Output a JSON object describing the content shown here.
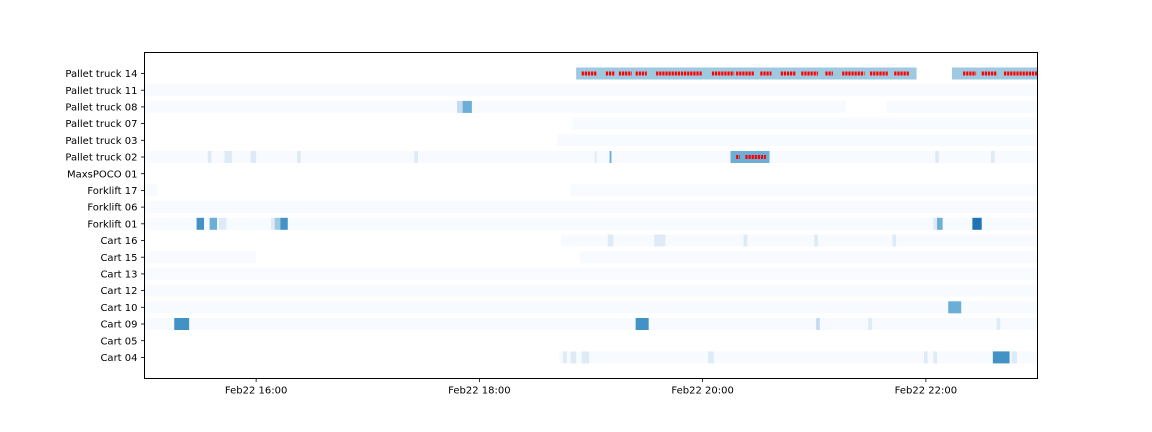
{
  "chart_data": {
    "type": "heatmap",
    "title": "",
    "xlabel": "",
    "ylabel": "",
    "colors": {
      "scale": [
        "#f7fbff",
        "#deebf7",
        "#c6dbef",
        "#9ecae1",
        "#6baed6",
        "#4292c6",
        "#2171b5"
      ],
      "marker": "#ff0000"
    },
    "xlim": [
      "2024-02-22T15:00",
      "2024-02-22T23:00"
    ],
    "x_ticks": [
      {
        "t": "2024-02-22T16:00",
        "label": "Feb22 16:00"
      },
      {
        "t": "2024-02-22T18:00",
        "label": "Feb22 18:00"
      },
      {
        "t": "2024-02-22T20:00",
        "label": "Feb22 20:00"
      },
      {
        "t": "2024-02-22T22:00",
        "label": "Feb22 22:00"
      }
    ],
    "rows": [
      {
        "name": "Pallet truck 14",
        "segments": [
          {
            "start": "18:52",
            "end": "21:55",
            "level": 3
          },
          {
            "start": "22:14",
            "end": "23:00",
            "level": 3
          }
        ],
        "markers": [
          [
            "18:55",
            "19:03"
          ],
          [
            "19:08",
            "19:13"
          ],
          [
            "19:15",
            "19:22"
          ],
          [
            "19:24",
            "19:30"
          ],
          [
            "19:35",
            "20:00"
          ],
          [
            "20:05",
            "20:17"
          ],
          [
            "20:18",
            "20:28"
          ],
          [
            "20:31",
            "20:37"
          ],
          [
            "20:42",
            "20:50"
          ],
          [
            "20:53",
            "21:02"
          ],
          [
            "21:06",
            "21:10"
          ],
          [
            "21:15",
            "21:27"
          ],
          [
            "21:30",
            "21:40"
          ],
          [
            "21:43",
            "21:51"
          ],
          [
            "22:20",
            "22:27"
          ],
          [
            "22:30",
            "22:38"
          ],
          [
            "22:42",
            "23:00"
          ]
        ]
      },
      {
        "name": "Pallet truck 11",
        "segments": [
          {
            "start": "15:00",
            "end": "23:00",
            "level": 0
          }
        ]
      },
      {
        "name": "Pallet truck 08",
        "segments": [
          {
            "start": "15:00",
            "end": "17:48",
            "level": 0
          },
          {
            "start": "17:48",
            "end": "17:51",
            "level": 2
          },
          {
            "start": "17:51",
            "end": "17:56",
            "level": 4
          },
          {
            "start": "17:56",
            "end": "21:17",
            "level": 0
          },
          {
            "start": "21:39",
            "end": "23:00",
            "level": 0
          }
        ]
      },
      {
        "name": "Pallet truck 07",
        "segments": [
          {
            "start": "18:50",
            "end": "23:00",
            "level": 0
          }
        ]
      },
      {
        "name": "Pallet truck 03",
        "segments": [
          {
            "start": "18:42",
            "end": "23:00",
            "level": 0
          }
        ]
      },
      {
        "name": "Pallet truck 02",
        "segments": [
          {
            "start": "15:00",
            "end": "20:15",
            "level": 0
          },
          {
            "start": "15:34",
            "end": "15:36",
            "level": 1
          },
          {
            "start": "15:43",
            "end": "15:47",
            "level": 1
          },
          {
            "start": "15:57",
            "end": "16:00",
            "level": 1
          },
          {
            "start": "16:22",
            "end": "16:24",
            "level": 1
          },
          {
            "start": "17:25",
            "end": "17:27",
            "level": 1
          },
          {
            "start": "19:02",
            "end": "19:03",
            "level": 1
          },
          {
            "start": "19:10",
            "end": "19:11",
            "level": 4
          },
          {
            "start": "20:15",
            "end": "20:36",
            "level": 4
          },
          {
            "start": "20:36",
            "end": "23:00",
            "level": 0
          },
          {
            "start": "22:05",
            "end": "22:07",
            "level": 1
          },
          {
            "start": "22:35",
            "end": "22:37",
            "level": 1
          }
        ],
        "markers": [
          [
            "20:18",
            "20:20"
          ],
          [
            "20:23",
            "20:34"
          ]
        ]
      },
      {
        "name": "MaxsPOCO 01",
        "segments": []
      },
      {
        "name": "Forklift 17",
        "segments": [
          {
            "start": "15:00",
            "end": "15:07",
            "level": 0
          },
          {
            "start": "18:49",
            "end": "23:00",
            "level": 0
          }
        ]
      },
      {
        "name": "Forklift 06",
        "segments": [
          {
            "start": "15:00",
            "end": "23:00",
            "level": 0
          }
        ]
      },
      {
        "name": "Forklift 01",
        "segments": [
          {
            "start": "15:00",
            "end": "23:00",
            "level": 0
          },
          {
            "start": "15:28",
            "end": "15:32",
            "level": 5
          },
          {
            "start": "15:35",
            "end": "15:39",
            "level": 4
          },
          {
            "start": "15:40",
            "end": "15:44",
            "level": 1
          },
          {
            "start": "16:08",
            "end": "16:10",
            "level": 1
          },
          {
            "start": "16:10",
            "end": "16:13",
            "level": 3
          },
          {
            "start": "16:13",
            "end": "16:17",
            "level": 5
          },
          {
            "start": "22:04",
            "end": "22:06",
            "level": 1
          },
          {
            "start": "22:06",
            "end": "22:09",
            "level": 4
          },
          {
            "start": "22:25",
            "end": "22:30",
            "level": 6
          }
        ]
      },
      {
        "name": "Cart 16",
        "segments": [
          {
            "start": "18:44",
            "end": "23:00",
            "level": 0
          },
          {
            "start": "19:09",
            "end": "19:12",
            "level": 1
          },
          {
            "start": "19:34",
            "end": "19:40",
            "level": 1
          },
          {
            "start": "20:22",
            "end": "20:24",
            "level": 1
          },
          {
            "start": "21:00",
            "end": "21:02",
            "level": 1
          },
          {
            "start": "21:42",
            "end": "21:44",
            "level": 1
          }
        ]
      },
      {
        "name": "Cart 15",
        "segments": [
          {
            "start": "15:00",
            "end": "16:00",
            "level": 0
          },
          {
            "start": "18:54",
            "end": "23:00",
            "level": 0
          }
        ]
      },
      {
        "name": "Cart 13",
        "segments": [
          {
            "start": "15:00",
            "end": "23:00",
            "level": 0
          }
        ]
      },
      {
        "name": "Cart 12",
        "segments": [
          {
            "start": "15:00",
            "end": "23:00",
            "level": 0
          }
        ]
      },
      {
        "name": "Cart 10",
        "segments": [
          {
            "start": "15:00",
            "end": "23:00",
            "level": 0
          },
          {
            "start": "22:12",
            "end": "22:19",
            "level": 4
          }
        ]
      },
      {
        "name": "Cart 09",
        "segments": [
          {
            "start": "15:00",
            "end": "23:00",
            "level": 0
          },
          {
            "start": "15:16",
            "end": "15:24",
            "level": 5
          },
          {
            "start": "19:24",
            "end": "19:31",
            "level": 5
          },
          {
            "start": "21:01",
            "end": "21:03",
            "level": 2
          },
          {
            "start": "21:29",
            "end": "21:31",
            "level": 1
          },
          {
            "start": "22:38",
            "end": "22:40",
            "level": 1
          }
        ]
      },
      {
        "name": "Cart 05",
        "segments": []
      },
      {
        "name": "Cart 04",
        "segments": [
          {
            "start": "18:43",
            "end": "23:00",
            "level": 0
          },
          {
            "start": "18:45",
            "end": "18:47",
            "level": 1
          },
          {
            "start": "18:49",
            "end": "18:52",
            "level": 1
          },
          {
            "start": "18:55",
            "end": "18:59",
            "level": 1
          },
          {
            "start": "20:03",
            "end": "20:06",
            "level": 1
          },
          {
            "start": "21:59",
            "end": "22:01",
            "level": 1
          },
          {
            "start": "22:04",
            "end": "22:06",
            "level": 1
          },
          {
            "start": "22:36",
            "end": "22:45",
            "level": 5
          },
          {
            "start": "22:46",
            "end": "22:49",
            "level": 1
          }
        ]
      }
    ]
  }
}
